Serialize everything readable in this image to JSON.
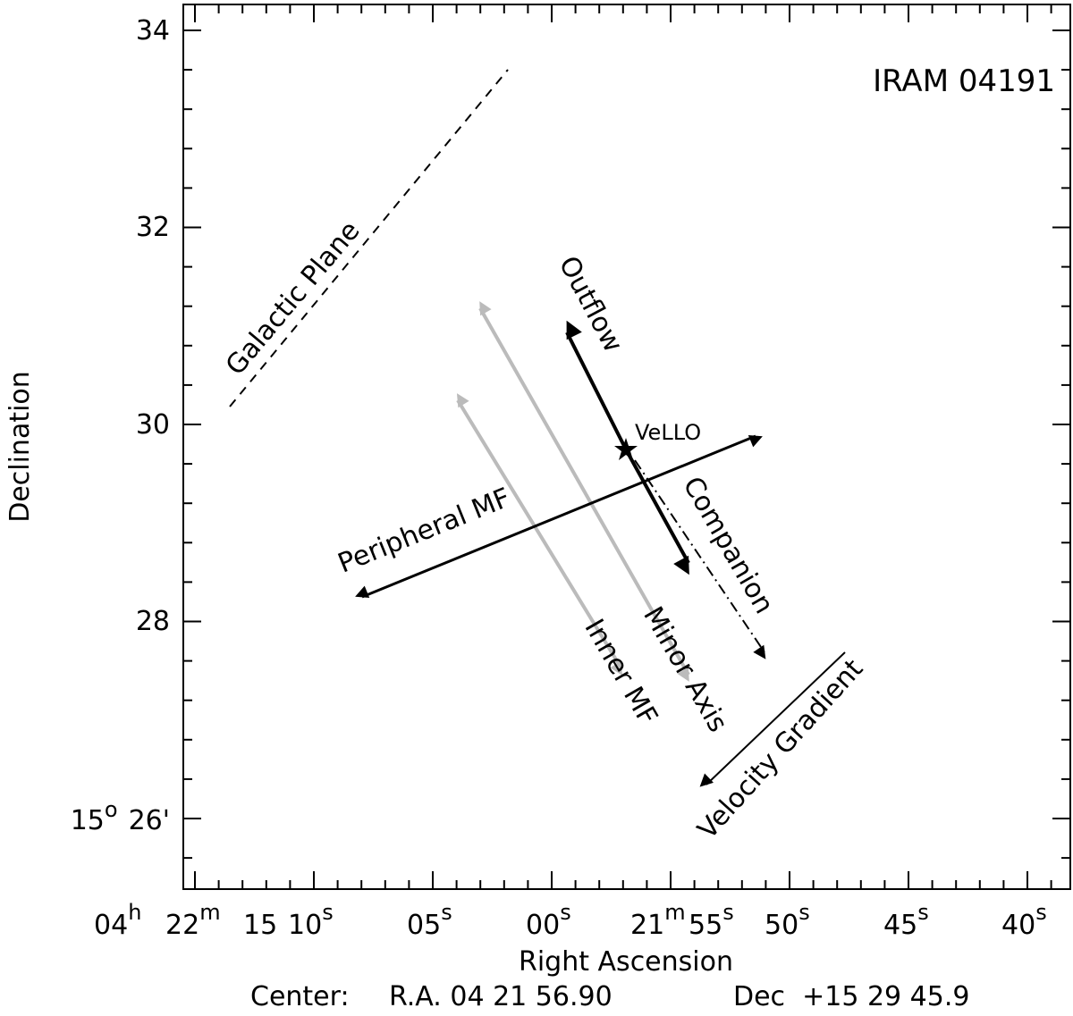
{
  "title": "IRAM 04191",
  "axes": {
    "x_label": "Right Ascension",
    "y_label": "Declination",
    "y_ticks": [
      "34",
      "32",
      "30",
      "28"
    ],
    "y_tick_origin": {
      "deg": "15",
      "deg_sup": "o",
      "min": "26'"
    },
    "x_ticks": [
      {
        "main": "04",
        "sup": "h"
      },
      {
        "main": "22",
        "sup": "m"
      },
      {
        "main": "15",
        "sup": ""
      },
      {
        "main": "10",
        "sup": "s"
      },
      {
        "main": "05",
        "sup": "s"
      },
      {
        "main": "00",
        "sup": "s"
      },
      {
        "main": "21",
        "sup": "m"
      },
      {
        "main": "55",
        "sup": "s"
      },
      {
        "main": "50",
        "sup": "s"
      },
      {
        "main": "45",
        "sup": "s"
      },
      {
        "main": "40",
        "sup": "s"
      }
    ]
  },
  "footer": {
    "center": "Center:",
    "ra": "R.A. 04 21 56.90",
    "dec": "Dec  +15 29 45.9"
  },
  "annotations": {
    "galactic_plane": "Galactic Plane",
    "outflow": "Outflow",
    "vello": "VeLLO",
    "companion": "Companion",
    "peripheral_mf": "Peripheral MF",
    "inner_mf": "Inner MF",
    "minor_axis": "Minor Axis",
    "velocity_gradient": "Velocity Gradient"
  }
}
